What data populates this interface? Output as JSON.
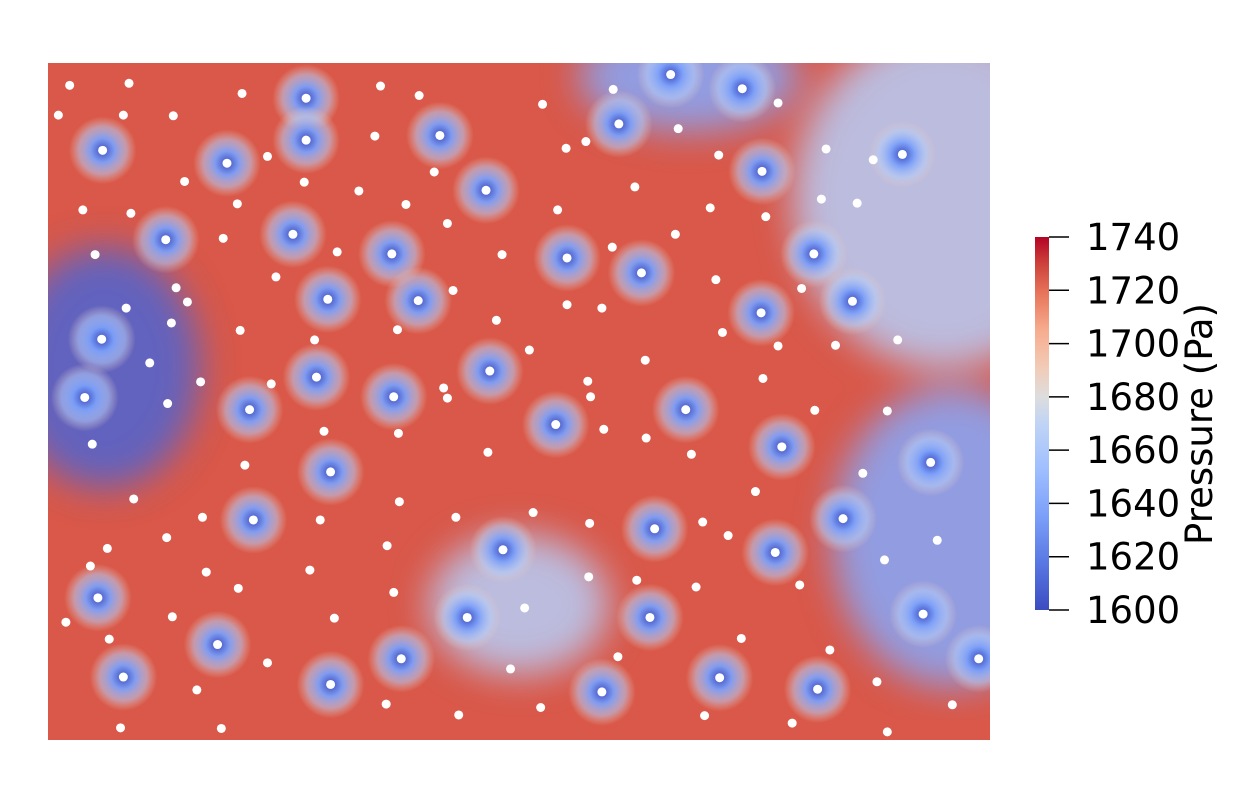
{
  "chart_data": {
    "type": "heatmap",
    "title": "",
    "colorbar": {
      "title": "Pressure (Pa)",
      "range": [
        1600,
        1740
      ],
      "ticks": [
        "1740",
        "1720",
        "1700",
        "1680",
        "1660",
        "1640",
        "1620",
        "1600"
      ],
      "colormap": "coolwarm",
      "colors": {
        "low": "#3b4cc0",
        "mid": "#dddddd",
        "high": "#b40426"
      }
    },
    "field_description_units": "Pa",
    "background_level": 1725,
    "low_pressure_regions": [
      {
        "x": 0.06,
        "y": 0.45,
        "value": 1610
      },
      {
        "x": 0.95,
        "y": 0.2,
        "value": 1665
      },
      {
        "x": 0.96,
        "y": 0.7,
        "value": 1640
      },
      {
        "x": 0.68,
        "y": 0.02,
        "value": 1640
      },
      {
        "x": 0.5,
        "y": 0.8,
        "value": 1665
      }
    ],
    "wells": {
      "x_range": [
        0,
        1
      ],
      "y_range": [
        0,
        1
      ],
      "blue": [
        [
          0.058,
          0.129
        ],
        [
          0.19,
          0.148
        ],
        [
          0.274,
          0.052
        ],
        [
          0.274,
          0.114
        ],
        [
          0.416,
          0.107
        ],
        [
          0.465,
          0.188
        ],
        [
          0.125,
          0.261
        ],
        [
          0.26,
          0.253
        ],
        [
          0.365,
          0.282
        ],
        [
          0.297,
          0.349
        ],
        [
          0.393,
          0.351
        ],
        [
          0.551,
          0.288
        ],
        [
          0.63,
          0.31
        ],
        [
          0.606,
          0.09
        ],
        [
          0.661,
          0.017
        ],
        [
          0.737,
          0.038
        ],
        [
          0.758,
          0.16
        ],
        [
          0.907,
          0.135
        ],
        [
          0.813,
          0.282
        ],
        [
          0.854,
          0.352
        ],
        [
          0.757,
          0.369
        ],
        [
          0.057,
          0.408
        ],
        [
          0.039,
          0.494
        ],
        [
          0.285,
          0.464
        ],
        [
          0.367,
          0.493
        ],
        [
          0.469,
          0.455
        ],
        [
          0.214,
          0.512
        ],
        [
          0.539,
          0.534
        ],
        [
          0.677,
          0.512
        ],
        [
          0.779,
          0.567
        ],
        [
          0.937,
          0.59
        ],
        [
          0.3,
          0.604
        ],
        [
          0.218,
          0.675
        ],
        [
          0.483,
          0.719
        ],
        [
          0.644,
          0.688
        ],
        [
          0.772,
          0.723
        ],
        [
          0.844,
          0.673
        ],
        [
          0.053,
          0.79
        ],
        [
          0.445,
          0.819
        ],
        [
          0.639,
          0.819
        ],
        [
          0.929,
          0.814
        ],
        [
          0.988,
          0.88
        ],
        [
          0.18,
          0.859
        ],
        [
          0.375,
          0.88
        ],
        [
          0.08,
          0.907
        ],
        [
          0.3,
          0.918
        ],
        [
          0.588,
          0.929
        ],
        [
          0.713,
          0.908
        ],
        [
          0.817,
          0.925
        ]
      ],
      "white": [
        [
          0.023,
          0.033
        ],
        [
          0.086,
          0.03
        ],
        [
          0.206,
          0.045
        ],
        [
          0.353,
          0.034
        ],
        [
          0.394,
          0.048
        ],
        [
          0.525,
          0.061
        ],
        [
          0.6,
          0.039
        ],
        [
          0.775,
          0.059
        ],
        [
          0.011,
          0.077
        ],
        [
          0.08,
          0.077
        ],
        [
          0.133,
          0.078
        ],
        [
          0.347,
          0.108
        ],
        [
          0.669,
          0.097
        ],
        [
          0.55,
          0.126
        ],
        [
          0.571,
          0.116
        ],
        [
          0.712,
          0.136
        ],
        [
          0.826,
          0.127
        ],
        [
          0.876,
          0.143
        ],
        [
          0.233,
          0.138
        ],
        [
          0.145,
          0.175
        ],
        [
          0.272,
          0.176
        ],
        [
          0.41,
          0.161
        ],
        [
          0.33,
          0.189
        ],
        [
          0.623,
          0.183
        ],
        [
          0.037,
          0.217
        ],
        [
          0.088,
          0.222
        ],
        [
          0.201,
          0.208
        ],
        [
          0.38,
          0.209
        ],
        [
          0.541,
          0.217
        ],
        [
          0.703,
          0.214
        ],
        [
          0.762,
          0.227
        ],
        [
          0.821,
          0.201
        ],
        [
          0.859,
          0.207
        ],
        [
          0.424,
          0.237
        ],
        [
          0.186,
          0.259
        ],
        [
          0.307,
          0.279
        ],
        [
          0.482,
          0.283
        ],
        [
          0.599,
          0.272
        ],
        [
          0.666,
          0.253
        ],
        [
          0.05,
          0.283
        ],
        [
          0.242,
          0.316
        ],
        [
          0.709,
          0.32
        ],
        [
          0.43,
          0.336
        ],
        [
          0.8,
          0.333
        ],
        [
          0.136,
          0.332
        ],
        [
          0.083,
          0.362
        ],
        [
          0.148,
          0.353
        ],
        [
          0.551,
          0.357
        ],
        [
          0.588,
          0.362
        ],
        [
          0.476,
          0.38
        ],
        [
          0.131,
          0.384
        ],
        [
          0.204,
          0.395
        ],
        [
          0.371,
          0.394
        ],
        [
          0.716,
          0.398
        ],
        [
          0.283,
          0.409
        ],
        [
          0.902,
          0.409
        ],
        [
          0.511,
          0.424
        ],
        [
          0.775,
          0.418
        ],
        [
          0.836,
          0.417
        ],
        [
          0.108,
          0.443
        ],
        [
          0.634,
          0.439
        ],
        [
          0.162,
          0.471
        ],
        [
          0.237,
          0.474
        ],
        [
          0.42,
          0.48
        ],
        [
          0.573,
          0.47
        ],
        [
          0.759,
          0.466
        ],
        [
          0.127,
          0.503
        ],
        [
          0.424,
          0.495
        ],
        [
          0.576,
          0.493
        ],
        [
          0.814,
          0.513
        ],
        [
          0.891,
          0.514
        ],
        [
          0.293,
          0.544
        ],
        [
          0.372,
          0.547
        ],
        [
          0.59,
          0.541
        ],
        [
          0.047,
          0.563
        ],
        [
          0.635,
          0.554
        ],
        [
          0.467,
          0.575
        ],
        [
          0.683,
          0.578
        ],
        [
          0.209,
          0.594
        ],
        [
          0.865,
          0.606
        ],
        [
          0.751,
          0.633
        ],
        [
          0.373,
          0.648
        ],
        [
          0.091,
          0.644
        ],
        [
          0.164,
          0.671
        ],
        [
          0.433,
          0.671
        ],
        [
          0.515,
          0.664
        ],
        [
          0.575,
          0.68
        ],
        [
          0.695,
          0.678
        ],
        [
          0.722,
          0.698
        ],
        [
          0.126,
          0.701
        ],
        [
          0.289,
          0.675
        ],
        [
          0.36,
          0.713
        ],
        [
          0.944,
          0.705
        ],
        [
          0.063,
          0.717
        ],
        [
          0.045,
          0.743
        ],
        [
          0.168,
          0.752
        ],
        [
          0.278,
          0.749
        ],
        [
          0.574,
          0.759
        ],
        [
          0.625,
          0.764
        ],
        [
          0.688,
          0.774
        ],
        [
          0.798,
          0.771
        ],
        [
          0.888,
          0.734
        ],
        [
          0.202,
          0.776
        ],
        [
          0.367,
          0.782
        ],
        [
          0.132,
          0.818
        ],
        [
          0.304,
          0.82
        ],
        [
          0.506,
          0.805
        ],
        [
          0.019,
          0.826
        ],
        [
          0.065,
          0.851
        ],
        [
          0.736,
          0.85
        ],
        [
          0.83,
          0.867
        ],
        [
          0.233,
          0.886
        ],
        [
          0.605,
          0.877
        ],
        [
          0.491,
          0.895
        ],
        [
          0.88,
          0.914
        ],
        [
          0.158,
          0.926
        ],
        [
          0.359,
          0.947
        ],
        [
          0.436,
          0.963
        ],
        [
          0.523,
          0.952
        ],
        [
          0.697,
          0.964
        ],
        [
          0.79,
          0.975
        ],
        [
          0.96,
          0.948
        ],
        [
          0.077,
          0.982
        ],
        [
          0.184,
          0.983
        ],
        [
          0.891,
          0.988
        ]
      ]
    }
  }
}
